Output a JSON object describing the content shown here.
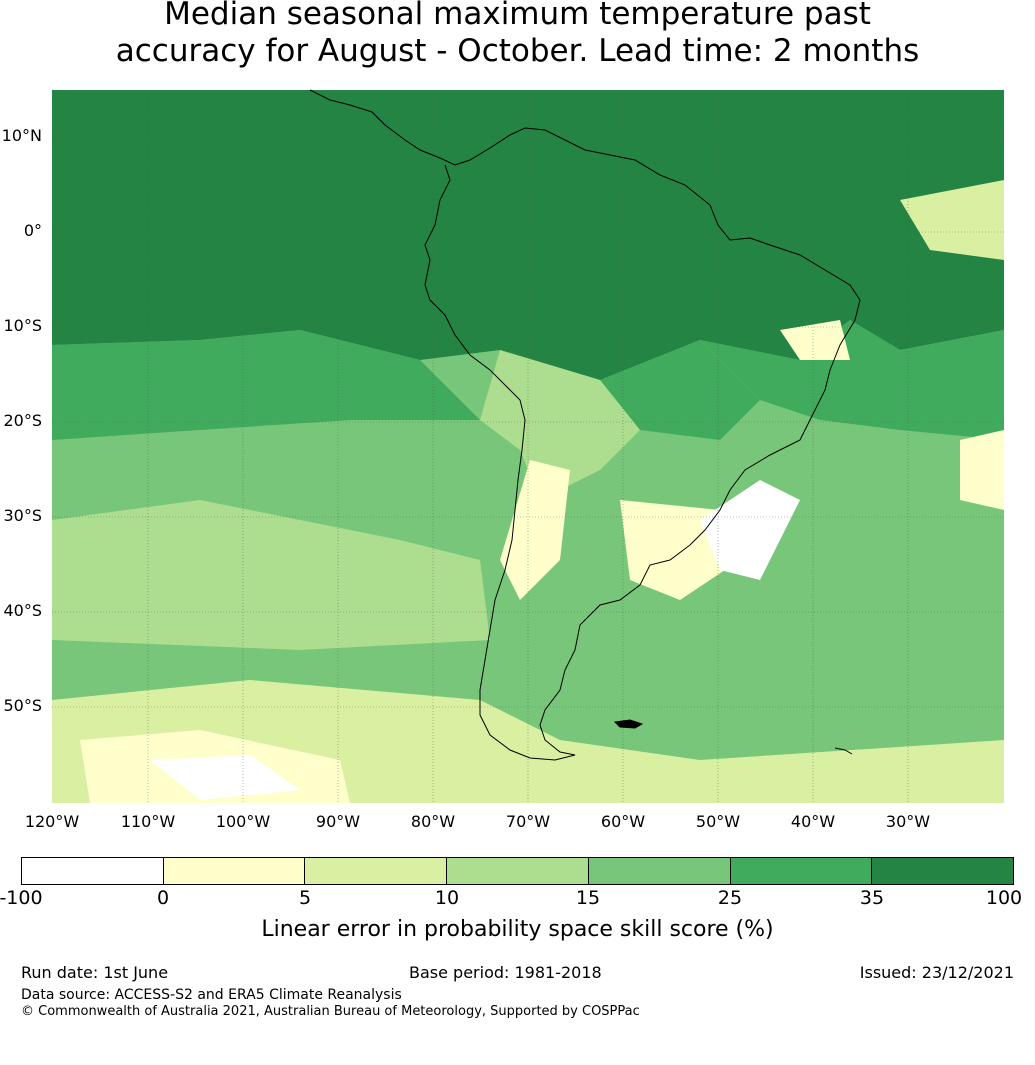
{
  "title": {
    "line1": "Median seasonal maximum temperature past",
    "line2": "accuracy for August - October. Lead time: 2 months"
  },
  "map": {
    "lat_labels": [
      "10°N",
      "0°",
      "10°S",
      "20°S",
      "30°S",
      "40°S",
      "50°S"
    ],
    "lon_labels": [
      "120°W",
      "110°W",
      "100°W",
      "90°W",
      "80°W",
      "70°W",
      "60°W",
      "50°W",
      "40°W",
      "30°W"
    ]
  },
  "colorbar": {
    "ticks": [
      "-100",
      "0",
      "5",
      "10",
      "15",
      "25",
      "35",
      "100"
    ],
    "colors": [
      "#ffffff",
      "#ffffcc",
      "#d9f0a3",
      "#addd8e",
      "#78c679",
      "#41ab5d",
      "#238443"
    ],
    "label": "Linear error in probability space skill score (%)"
  },
  "footer": {
    "run_date": "Run date: 1st June",
    "base_period": "Base period: 1981-2018",
    "issued": "Issued: 23/12/2021",
    "data_source": "Data source: ACCESS-S2 and ERA5 Climate Reanalysis",
    "copyright": "© Commonwealth of Australia 2021, Australian Bureau of Meteorology, Supported by COSPPac"
  }
}
